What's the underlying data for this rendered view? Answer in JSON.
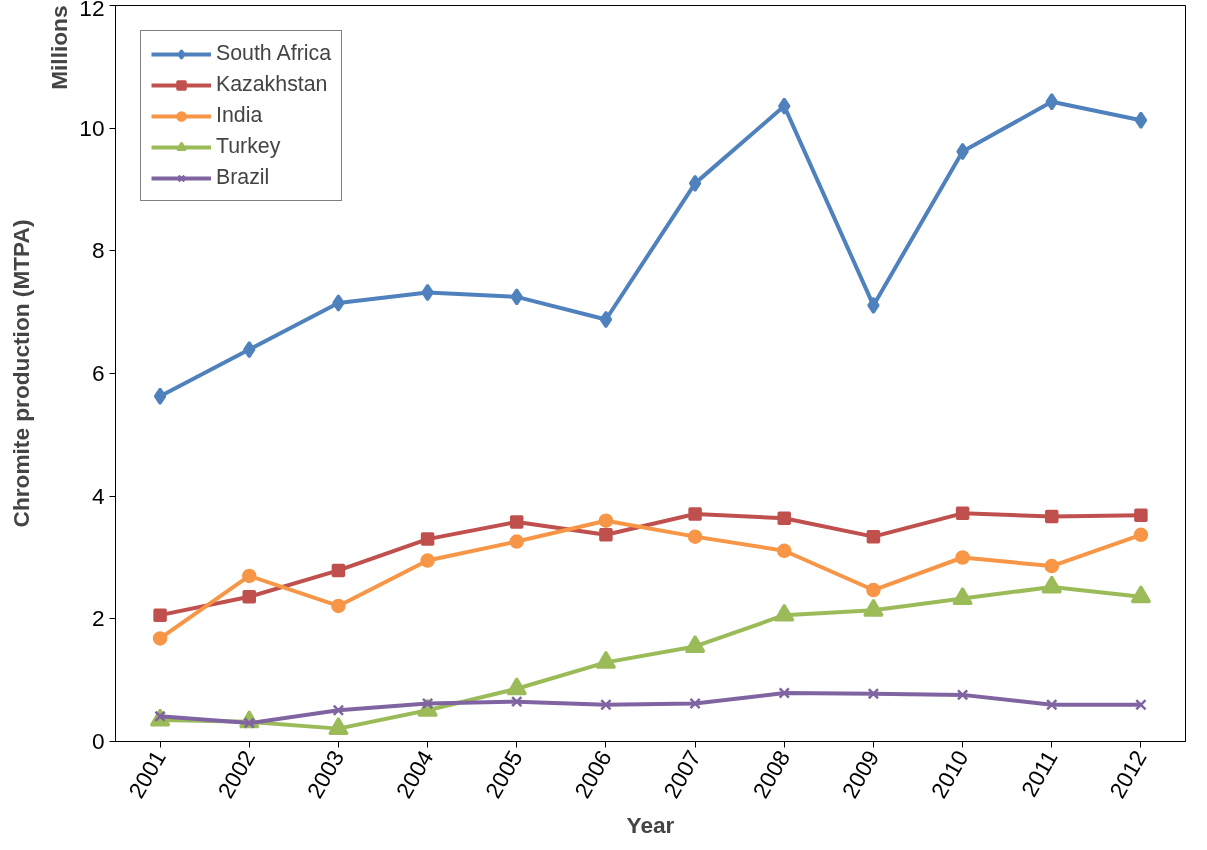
{
  "chart_data": {
    "type": "line",
    "xlabel": "Year",
    "ylabel": "Chromite production (MTPA)",
    "annotations": [
      "Millions"
    ],
    "categories": [
      "2001",
      "2002",
      "2003",
      "2004",
      "2005",
      "2006",
      "2007",
      "2008",
      "2009",
      "2010",
      "2011",
      "2012"
    ],
    "series": [
      {
        "name": "South Africa",
        "color": "#4f81bd",
        "marker": "diamond",
        "values": [
          5.63,
          6.39,
          7.15,
          7.32,
          7.25,
          6.88,
          9.1,
          10.36,
          7.11,
          9.62,
          10.43,
          10.13
        ]
      },
      {
        "name": "Kazakhstan",
        "color": "#c0504d",
        "marker": "square",
        "values": [
          2.06,
          2.36,
          2.79,
          3.3,
          3.58,
          3.37,
          3.71,
          3.64,
          3.34,
          3.72,
          3.67,
          3.69
        ]
      },
      {
        "name": "India",
        "color": "#f79646",
        "marker": "circle",
        "values": [
          1.68,
          2.7,
          2.21,
          2.95,
          3.26,
          3.6,
          3.34,
          3.11,
          2.47,
          3.0,
          2.86,
          3.37
        ]
      },
      {
        "name": "Turkey",
        "color": "#9bbb59",
        "marker": "triangle",
        "values": [
          0.35,
          0.32,
          0.21,
          0.51,
          0.86,
          1.29,
          1.55,
          2.06,
          2.14,
          2.33,
          2.52,
          2.36
        ]
      },
      {
        "name": "Brazil",
        "color": "#8064a2",
        "marker": "cross",
        "values": [
          0.41,
          0.3,
          0.51,
          0.62,
          0.65,
          0.6,
          0.62,
          0.79,
          0.78,
          0.76,
          0.6,
          0.6
        ]
      }
    ],
    "ylim": [
      0,
      12
    ],
    "yticks": [
      0,
      2,
      4,
      6,
      8,
      10,
      12
    ],
    "grid": false,
    "legend": "top left",
    "line_style": "solid"
  }
}
